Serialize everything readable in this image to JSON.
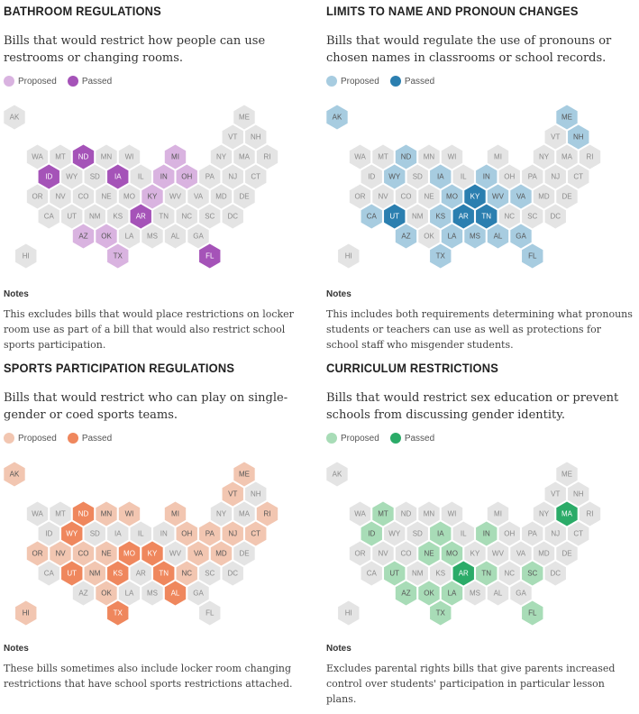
{
  "colors": {
    "none": "#e4e4e4",
    "none_text": "#8a8a8a",
    "bathroom": {
      "proposed": "#d9b3e0",
      "passed": "#a553b8"
    },
    "pronoun": {
      "proposed": "#a7cce0",
      "passed": "#2b7fb0"
    },
    "sports": {
      "proposed": "#f2c6b1",
      "passed": "#ef875d"
    },
    "curriculum": {
      "proposed": "#a8dcb7",
      "passed": "#2bab68"
    }
  },
  "legend": {
    "proposed": "Proposed",
    "passed": "Passed"
  },
  "chart_data": [
    {
      "type": "hex-tile-map",
      "key": "bathroom",
      "title": "BATHROOM REGULATIONS",
      "description": "Bills that would restrict how people can use restrooms or changing rooms.",
      "notes_label": "Notes",
      "notes": "This excludes bills that would place restrictions on locker room use as part of a bill that would also restrict school sports participation.",
      "proposed": [
        "MI",
        "IN",
        "OH",
        "KY",
        "AZ",
        "OK",
        "TX"
      ],
      "passed": [
        "ND",
        "ID",
        "IA",
        "AR",
        "FL"
      ]
    },
    {
      "type": "hex-tile-map",
      "key": "pronoun",
      "title": "LIMITS TO NAME AND PRONOUN CHANGES",
      "description": "Bills that would regulate the use of pronouns or chosen names in classrooms or school records.",
      "notes_label": "Notes",
      "notes": "This includes both requirements determining what pronouns students or teachers can use as well as protections for school staff who misgender students.",
      "proposed": [
        "AK",
        "ME",
        "NH",
        "ND",
        "WY",
        "IA",
        "IN",
        "CA",
        "MO",
        "WV",
        "VA",
        "KS",
        "AZ",
        "LA",
        "MS",
        "AL",
        "GA",
        "TX",
        "FL"
      ],
      "passed": [
        "KY",
        "UT",
        "AR",
        "TN"
      ]
    },
    {
      "type": "hex-tile-map",
      "key": "sports",
      "title": "SPORTS PARTICIPATION REGULATIONS",
      "description": "Bills that would restrict who can play on single-gender or coed sports teams.",
      "notes_label": "Notes",
      "notes": "These bills sometimes also include locker room changing restrictions that have school sports restrictions attached.",
      "proposed": [
        "AK",
        "ME",
        "VT",
        "MN",
        "WI",
        "MI",
        "RI",
        "OH",
        "PA",
        "NJ",
        "CT",
        "OR",
        "NV",
        "CO",
        "NE",
        "VA",
        "MD",
        "NM",
        "NC",
        "OK",
        "HI"
      ],
      "passed": [
        "ND",
        "WY",
        "MO",
        "KY",
        "UT",
        "KS",
        "TN",
        "AL",
        "TX"
      ]
    },
    {
      "type": "hex-tile-map",
      "key": "curriculum",
      "title": "CURRICULUM RESTRICTIONS",
      "description": "Bills that would restrict sex education or prevent schools from discussing gender identity.",
      "notes_label": "Notes",
      "notes": "Excludes parental rights bills that give parents increased control over students' participation in particular lesson plans.",
      "proposed": [
        "MT",
        "ID",
        "IA",
        "IN",
        "NE",
        "MO",
        "UT",
        "TN",
        "SC",
        "AZ",
        "OK",
        "LA",
        "TX",
        "FL"
      ],
      "passed": [
        "MA",
        "AR"
      ]
    }
  ],
  "states": [
    {
      "s": "AK",
      "r": 0,
      "c": 0
    },
    {
      "s": "ME",
      "r": 0,
      "c": 10
    },
    {
      "s": "VT",
      "r": 1,
      "c": 9
    },
    {
      "s": "NH",
      "r": 1,
      "c": 10
    },
    {
      "s": "WA",
      "r": 2,
      "c": 1
    },
    {
      "s": "MT",
      "r": 2,
      "c": 2
    },
    {
      "s": "ND",
      "r": 2,
      "c": 3
    },
    {
      "s": "MN",
      "r": 2,
      "c": 4
    },
    {
      "s": "WI",
      "r": 2,
      "c": 5
    },
    {
      "s": "MI",
      "r": 2,
      "c": 7
    },
    {
      "s": "NY",
      "r": 2,
      "c": 9
    },
    {
      "s": "MA",
      "r": 2,
      "c": 10
    },
    {
      "s": "RI",
      "r": 2,
      "c": 11
    },
    {
      "s": "ID",
      "r": 3,
      "c": 1
    },
    {
      "s": "WY",
      "r": 3,
      "c": 2
    },
    {
      "s": "SD",
      "r": 3,
      "c": 3
    },
    {
      "s": "IA",
      "r": 3,
      "c": 4
    },
    {
      "s": "IL",
      "r": 3,
      "c": 5
    },
    {
      "s": "IN",
      "r": 3,
      "c": 6
    },
    {
      "s": "OH",
      "r": 3,
      "c": 7
    },
    {
      "s": "PA",
      "r": 3,
      "c": 8
    },
    {
      "s": "NJ",
      "r": 3,
      "c": 9
    },
    {
      "s": "CT",
      "r": 3,
      "c": 10
    },
    {
      "s": "OR",
      "r": 4,
      "c": 1
    },
    {
      "s": "NV",
      "r": 4,
      "c": 2
    },
    {
      "s": "CO",
      "r": 4,
      "c": 3
    },
    {
      "s": "NE",
      "r": 4,
      "c": 4
    },
    {
      "s": "MO",
      "r": 4,
      "c": 5
    },
    {
      "s": "KY",
      "r": 4,
      "c": 6
    },
    {
      "s": "WV",
      "r": 4,
      "c": 7
    },
    {
      "s": "VA",
      "r": 4,
      "c": 8
    },
    {
      "s": "MD",
      "r": 4,
      "c": 9
    },
    {
      "s": "DE",
      "r": 4,
      "c": 10
    },
    {
      "s": "CA",
      "r": 5,
      "c": 1
    },
    {
      "s": "UT",
      "r": 5,
      "c": 2
    },
    {
      "s": "NM",
      "r": 5,
      "c": 3
    },
    {
      "s": "KS",
      "r": 5,
      "c": 4
    },
    {
      "s": "AR",
      "r": 5,
      "c": 5
    },
    {
      "s": "TN",
      "r": 5,
      "c": 6
    },
    {
      "s": "NC",
      "r": 5,
      "c": 7
    },
    {
      "s": "SC",
      "r": 5,
      "c": 8
    },
    {
      "s": "DC",
      "r": 5,
      "c": 9
    },
    {
      "s": "AZ",
      "r": 6,
      "c": 3
    },
    {
      "s": "OK",
      "r": 6,
      "c": 4
    },
    {
      "s": "LA",
      "r": 6,
      "c": 5
    },
    {
      "s": "MS",
      "r": 6,
      "c": 6
    },
    {
      "s": "AL",
      "r": 6,
      "c": 7
    },
    {
      "s": "GA",
      "r": 6,
      "c": 8
    },
    {
      "s": "HI",
      "r": 7,
      "c": 0
    },
    {
      "s": "TX",
      "r": 7,
      "c": 4
    },
    {
      "s": "FL",
      "r": 7,
      "c": 8
    }
  ]
}
